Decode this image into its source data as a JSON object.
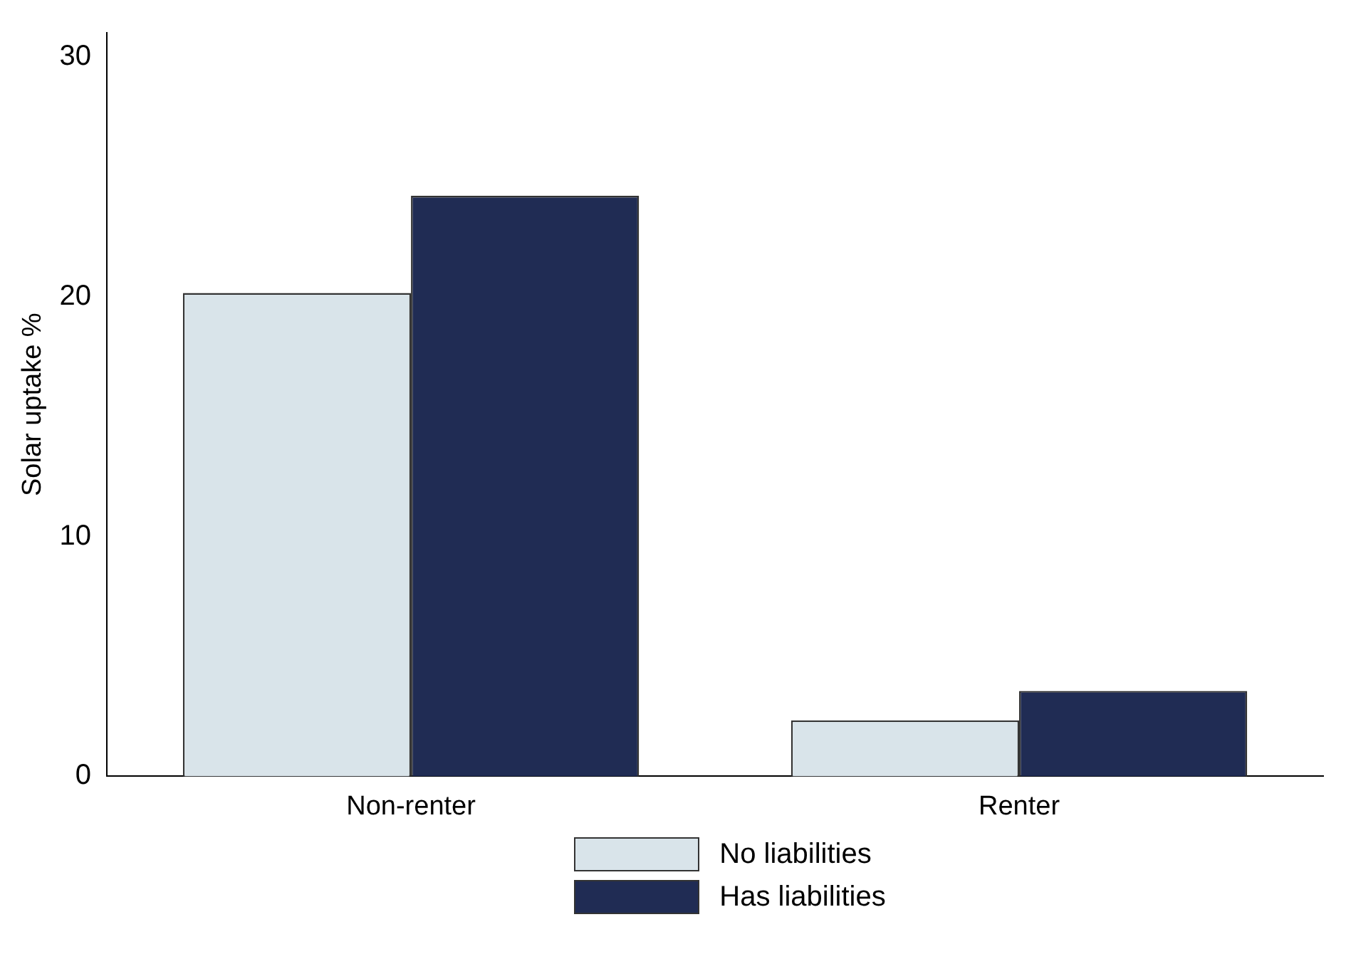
{
  "chart_data": {
    "type": "bar",
    "ylabel": "Solar uptake %",
    "categories": [
      "Non-renter",
      "Renter"
    ],
    "series": [
      {
        "name": "No liabilities",
        "color": "#d9e4ea",
        "values": [
          20.15,
          2.33
        ]
      },
      {
        "name": "Has liabilities",
        "color": "#202c54",
        "values": [
          24.2,
          3.56
        ]
      }
    ],
    "ylim": [
      0,
      31
    ],
    "yticks": [
      0,
      10,
      20,
      30
    ],
    "grid": false,
    "legend": "bottom"
  }
}
